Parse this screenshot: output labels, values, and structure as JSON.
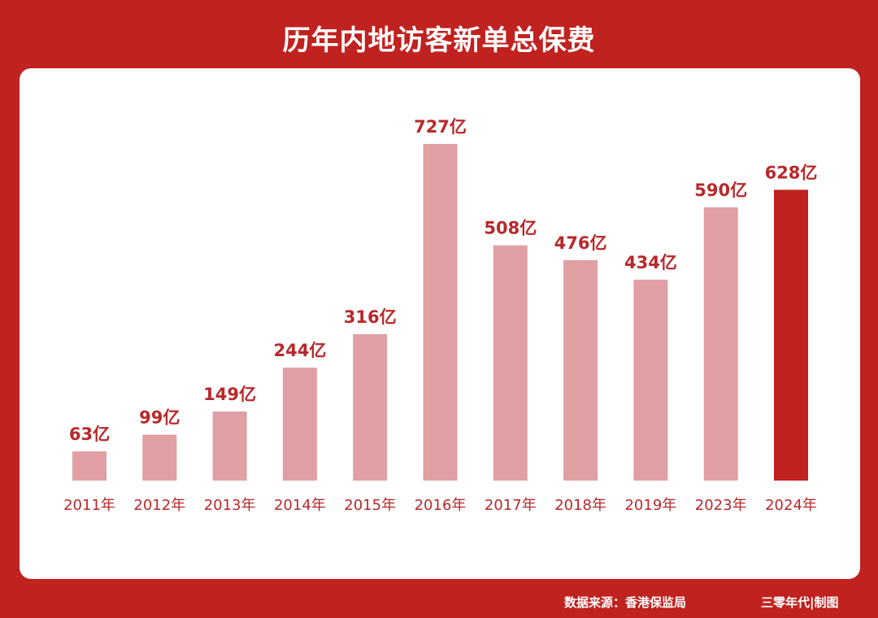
{
  "header": {
    "title": "历年内地访客新单总保费"
  },
  "footer": {
    "source": "数据来源：香港保监局",
    "credit": "三零年代|制图"
  },
  "colors": {
    "background": "#c0221f",
    "bar": "#e09fa2",
    "highlight": "#c0221f",
    "label": "#b8282a"
  },
  "chart_data": {
    "type": "bar",
    "title": "历年内地访客新单总保费",
    "categories": [
      "2011年",
      "2012年",
      "2013年",
      "2014年",
      "2015年",
      "2016年",
      "2017年",
      "2018年",
      "2019年",
      "2023年",
      "2024年"
    ],
    "values": [
      63,
      99,
      149,
      244,
      316,
      727,
      508,
      476,
      434,
      590,
      628
    ],
    "data_labels": [
      "63亿",
      "99亿",
      "149亿",
      "244亿",
      "316亿",
      "727亿",
      "508亿",
      "476亿",
      "434亿",
      "590亿",
      "628亿"
    ],
    "unit": "亿",
    "highlight_index": 10,
    "ylim": [
      0,
      727
    ],
    "grid": false,
    "legend": "none"
  }
}
